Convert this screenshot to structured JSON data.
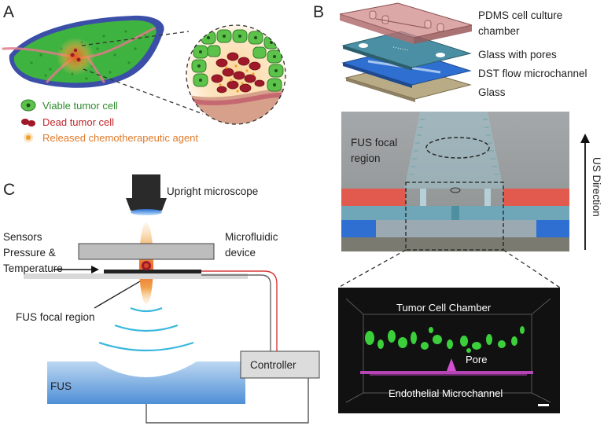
{
  "panel_a": {
    "letter": "A",
    "legend": [
      {
        "label": "Viable tumor cell",
        "color": "#2e8b2e"
      },
      {
        "label": "Dead tumor cell",
        "color": "#c0282d"
      },
      {
        "label": "Released chemotherapeutic agent",
        "color": "#e07a2a"
      }
    ]
  },
  "panel_b": {
    "letter": "B",
    "layers": [
      {
        "label_line1": "PDMS cell culture",
        "label_line2": "chamber"
      },
      {
        "label_line1": "Glass with pores",
        "label_line2": ""
      },
      {
        "label_line1": "DST flow microchannel",
        "label_line2": ""
      },
      {
        "label_line1": "Glass",
        "label_line2": ""
      }
    ],
    "fus_focal_line1": "FUS focal",
    "fus_focal_line2": "region",
    "us_direction": "US Direction",
    "micrograph": {
      "top_label": "Tumor Cell Chamber",
      "pore_label": "Pore",
      "bottom_label": "Endothelial Microchannel"
    }
  },
  "panel_c": {
    "letter": "C",
    "microscope": "Upright microscope",
    "sensors_line1": "Sensors",
    "sensors_line2": "Pressure &",
    "sensors_line3": "Temperature",
    "device_line1": "Microfluidic",
    "device_line2": "device",
    "focal": "FUS focal region",
    "controller": "Controller",
    "fus": "FUS"
  },
  "colors": {
    "tumor_green": "#3fb33f",
    "tissue_blue": "#3b4fa8",
    "dead_red": "#a0192a",
    "glass_teal": "#4a8fa3",
    "channel_blue": "#2f6fd1",
    "wave_cyan": "#39b7dd",
    "cable_red": "#d93a3a"
  }
}
